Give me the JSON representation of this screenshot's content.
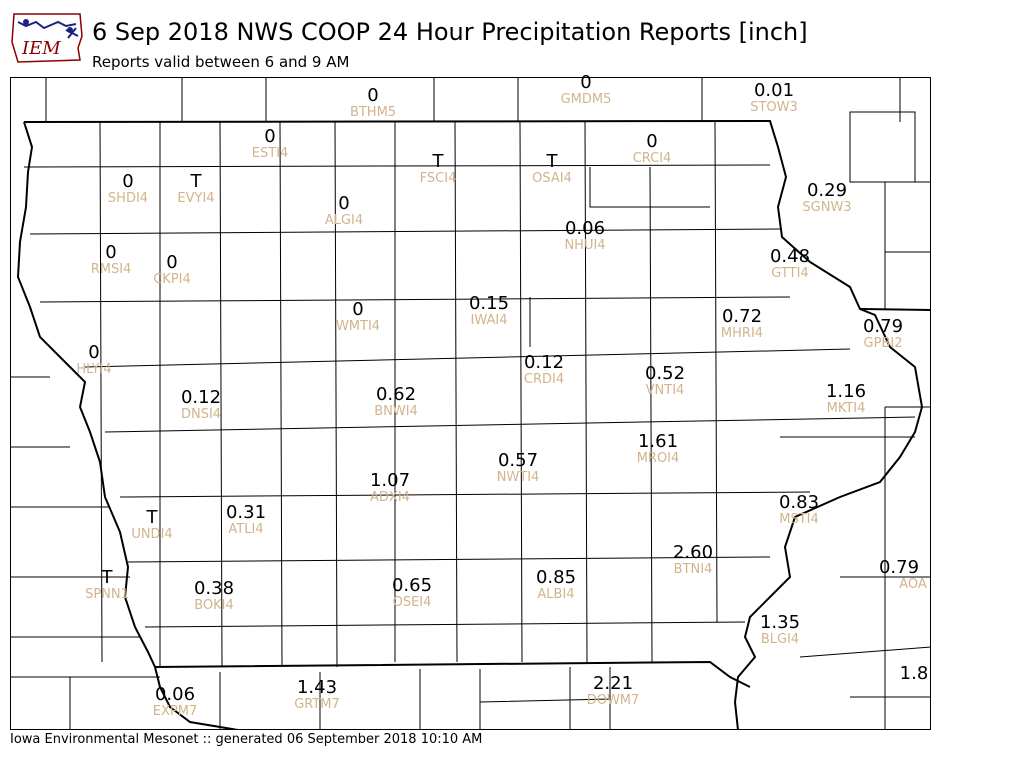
{
  "header": {
    "title": "6 Sep 2018 NWS COOP 24 Hour Precipitation Reports [inch]",
    "subtitle": "Reports valid between 6 and 9 AM",
    "logo_text": "IEM"
  },
  "footer": {
    "text": "Iowa Environmental Mesonet :: generated 06 September 2018 10:10 AM"
  },
  "colors": {
    "value": "#000000",
    "station_id": "#d2b48c",
    "logo_blue": "#1a237e",
    "logo_red": "#8b0000"
  },
  "stations": [
    {
      "id": "BTHM5",
      "value": "0"
    },
    {
      "id": "GMDM5",
      "value": "0"
    },
    {
      "id": "STOW3",
      "value": "0.01"
    },
    {
      "id": "ESTI4",
      "value": "0"
    },
    {
      "id": "CRCI4",
      "value": "0"
    },
    {
      "id": "FSCI4",
      "value": "T"
    },
    {
      "id": "OSAI4",
      "value": "T"
    },
    {
      "id": "SHDI4",
      "value": "0"
    },
    {
      "id": "EVYI4",
      "value": "T"
    },
    {
      "id": "SGNW3",
      "value": "0.29"
    },
    {
      "id": "ALGI4",
      "value": "0"
    },
    {
      "id": "NHUI4",
      "value": "0.06"
    },
    {
      "id": "RMSI4",
      "value": "0"
    },
    {
      "id": "CKPI4",
      "value": "0"
    },
    {
      "id": "GTTI4",
      "value": "0.48"
    },
    {
      "id": "WMTI4",
      "value": "0"
    },
    {
      "id": "IWAI4",
      "value": "0.15"
    },
    {
      "id": "MHRI4",
      "value": "0.72"
    },
    {
      "id": "GPBI2",
      "value": "0.79"
    },
    {
      "id": "HLYI4",
      "value": "0"
    },
    {
      "id": "CRDI4",
      "value": "0.12"
    },
    {
      "id": "VNTI4",
      "value": "0.52"
    },
    {
      "id": "DNSI4",
      "value": "0.12"
    },
    {
      "id": "BNWI4",
      "value": "0.62"
    },
    {
      "id": "MKTI4",
      "value": "1.16"
    },
    {
      "id": "MROI4",
      "value": "1.61"
    },
    {
      "id": "NWTI4",
      "value": "0.57"
    },
    {
      "id": "ADXI4",
      "value": "1.07"
    },
    {
      "id": "MSTI4",
      "value": "0.83"
    },
    {
      "id": "UNDI4",
      "value": "T"
    },
    {
      "id": "ATLI4",
      "value": "0.31"
    },
    {
      "id": "BTNI4",
      "value": "2.60"
    },
    {
      "id": "AOA",
      "value": "0.79"
    },
    {
      "id": "SPNN1",
      "value": "T"
    },
    {
      "id": "BOKI4",
      "value": "0.38"
    },
    {
      "id": "OSEI4",
      "value": "0.65"
    },
    {
      "id": "ALBI4",
      "value": "0.85"
    },
    {
      "id": "BLGI4",
      "value": "1.35"
    },
    {
      "id": "EXPM7",
      "value": "0.06"
    },
    {
      "id": "GRTM7",
      "value": "1.43"
    },
    {
      "id": "DOWM7",
      "value": "2.21"
    },
    {
      "id": "",
      "value": "1.8"
    }
  ]
}
